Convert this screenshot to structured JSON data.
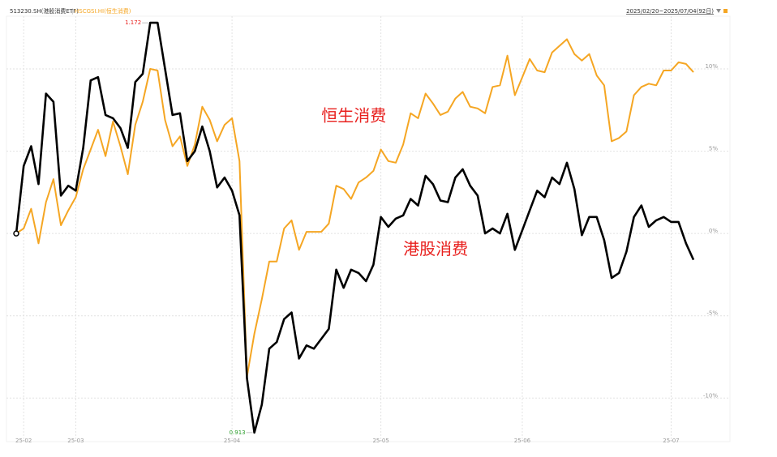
{
  "chart_data": {
    "type": "line",
    "header": {
      "separator": "|",
      "range": "2025/02/20~2025/07/04(92日)"
    },
    "categories": [
      null,
      "25-02",
      null,
      null,
      null,
      null,
      null,
      null,
      "25-03",
      null,
      null,
      null,
      null,
      null,
      null,
      null,
      null,
      null,
      null,
      null,
      null,
      null,
      null,
      null,
      null,
      null,
      null,
      null,
      null,
      "25-04",
      null,
      null,
      null,
      null,
      null,
      null,
      null,
      null,
      null,
      null,
      null,
      null,
      null,
      null,
      null,
      null,
      null,
      null,
      null,
      "25-05",
      null,
      null,
      null,
      null,
      null,
      null,
      null,
      null,
      null,
      null,
      null,
      null,
      null,
      null,
      null,
      null,
      null,
      null,
      "25-06",
      null,
      null,
      null,
      null,
      null,
      null,
      null,
      null,
      null,
      null,
      null,
      null,
      null,
      null,
      null,
      null,
      null,
      null,
      null,
      "25-07",
      null,
      null,
      null
    ],
    "series": [
      {
        "name": "513230.SH(港股消费ETF)",
        "color": "#000000",
        "values": [
          0,
          4.1,
          5.3,
          3.0,
          8.5,
          8.0,
          2.3,
          2.9,
          2.6,
          5.2,
          9.3,
          9.5,
          7.2,
          7.0,
          6.4,
          5.2,
          9.2,
          9.7,
          12.8,
          12.8,
          10.0,
          7.2,
          7.3,
          4.4,
          5.0,
          6.5,
          5.0,
          2.8,
          3.4,
          2.6,
          1.1,
          -8.8,
          -12.1,
          -10.4,
          -7.0,
          -6.6,
          -5.2,
          -4.8,
          -7.6,
          -6.8,
          -7.0,
          -6.4,
          -5.8,
          -2.2,
          -3.3,
          -2.2,
          -2.4,
          -2.9,
          -1.9,
          1.0,
          0.4,
          0.9,
          1.1,
          2.1,
          1.7,
          3.5,
          3.0,
          2.0,
          1.9,
          3.4,
          3.9,
          2.9,
          2.3,
          0.0,
          0.3,
          0.0,
          1.2,
          -1.0,
          0.2,
          1.4,
          2.6,
          2.2,
          3.4,
          3.0,
          4.3,
          2.7,
          -0.1,
          1.0,
          1.0,
          -0.4,
          -2.7,
          -2.4,
          -1.1,
          1.0,
          1.7,
          0.4,
          0.8,
          1.0,
          0.7,
          0.7,
          -0.6,
          -1.6
        ]
      },
      {
        "name": "HSCGSI.HI(恒生消费)",
        "color": "#f5a623",
        "values": [
          0,
          0.3,
          1.5,
          -0.6,
          1.9,
          3.3,
          0.5,
          1.4,
          2.2,
          3.9,
          5.1,
          6.3,
          4.7,
          6.8,
          5.3,
          3.6,
          6.6,
          8.0,
          10.0,
          9.9,
          6.9,
          5.3,
          5.9,
          4.1,
          5.4,
          7.7,
          6.9,
          5.6,
          6.6,
          7.0,
          4.4,
          -8.7,
          -6.1,
          -4.0,
          -1.7,
          -1.7,
          0.3,
          0.8,
          -1.0,
          0.1,
          0.1,
          0.1,
          0.6,
          2.9,
          2.7,
          2.1,
          3.1,
          3.4,
          3.8,
          5.1,
          4.4,
          4.3,
          5.4,
          7.3,
          7.0,
          8.5,
          7.9,
          7.2,
          7.4,
          8.2,
          8.6,
          7.7,
          7.6,
          7.3,
          8.9,
          9.0,
          10.8,
          8.4,
          9.5,
          10.6,
          9.9,
          9.8,
          11.0,
          11.4,
          11.8,
          10.9,
          10.5,
          10.9,
          9.6,
          9.0,
          5.6,
          5.8,
          6.2,
          8.4,
          8.9,
          9.1,
          9.0,
          9.9,
          9.9,
          10.4,
          10.3,
          9.8
        ]
      }
    ],
    "annotations": [
      {
        "text": "1.172",
        "index": 18,
        "series": 0,
        "color": "#e8201e"
      },
      {
        "text": "0.913",
        "index": 32,
        "series": 0,
        "color": "#2a9d2a"
      },
      {
        "text": "恒生消费",
        "index": 41,
        "value": 7.1
      },
      {
        "text": "港股消费",
        "index": 52,
        "value": -1.0
      }
    ],
    "ylim": [
      -12.4,
      13.2
    ],
    "yticks": [
      {
        "value": -10,
        "label": "-10%"
      },
      {
        "value": -5,
        "label": "-5%"
      },
      {
        "value": 0,
        "label": "0%"
      },
      {
        "value": 5,
        "label": "5%"
      },
      {
        "value": 10,
        "label": "10%"
      }
    ],
    "grid": true
  }
}
